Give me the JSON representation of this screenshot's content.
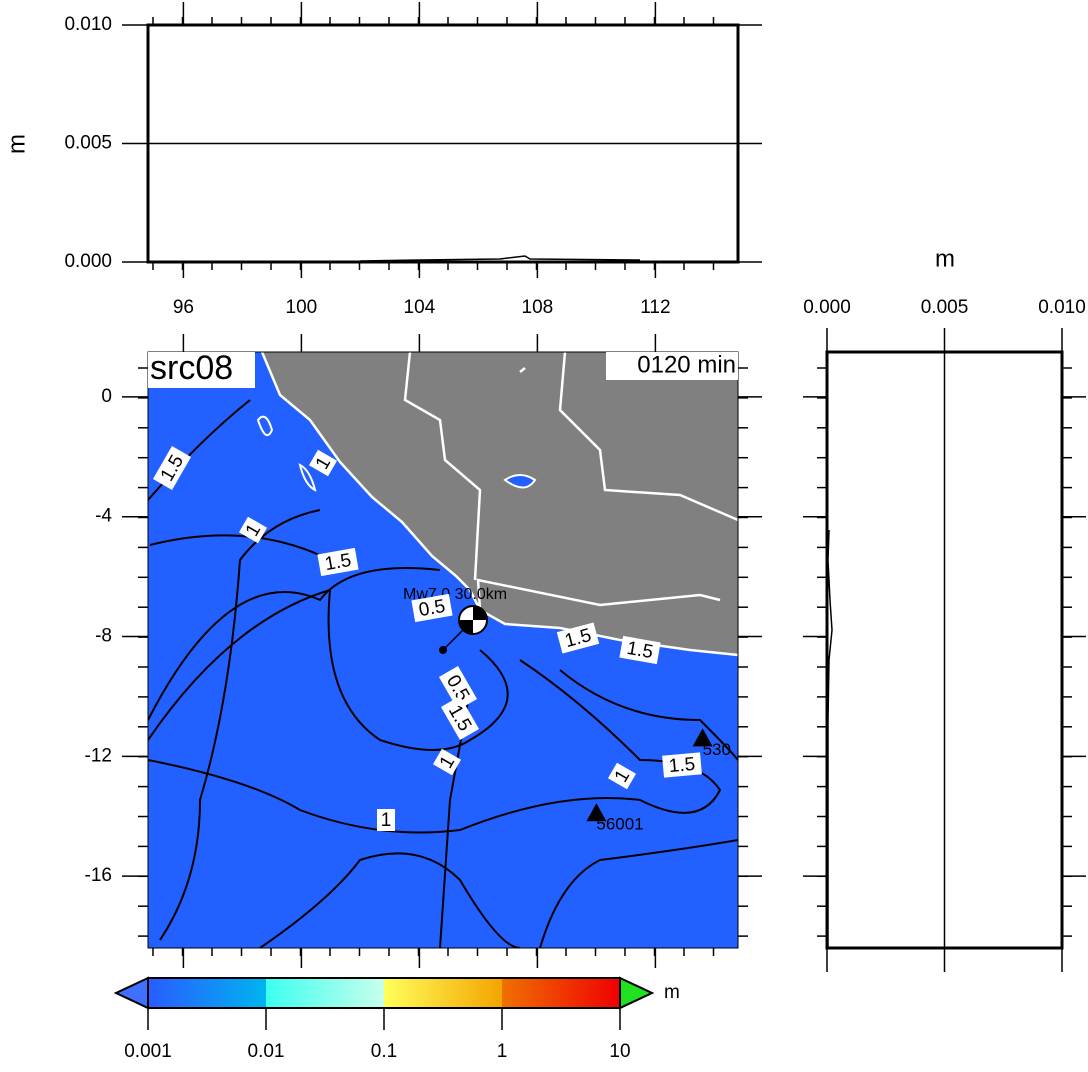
{
  "waveform_panel": {
    "y_label": "m",
    "ylim": [
      0,
      0.01
    ],
    "yticks": [
      {
        "value": 0,
        "label": "0.000"
      },
      {
        "value": 0.005,
        "label": "0.005"
      },
      {
        "value": 0.01,
        "label": "0.010"
      }
    ],
    "xlim": [
      94.8,
      114.8
    ],
    "xticks": [
      96,
      100,
      104,
      108,
      112
    ]
  },
  "map": {
    "title": "src08",
    "time_label": "0120 min",
    "ylim": [
      -18.4,
      1.5
    ],
    "yticks": [
      0,
      -4,
      -8,
      -12,
      -16
    ],
    "epicenter": {
      "label": "Mw7.0 30.0km",
      "lon": 104.8,
      "lat": -8.45
    },
    "stations": [
      {
        "label": "56001",
        "lon": 110.0,
        "lat": -13.9
      },
      {
        "label": "530",
        "lon": 113.6,
        "lat": -11.4
      }
    ],
    "contour_labels": [
      "1.5",
      "1",
      "1",
      "1.5",
      "0.5",
      "1.5",
      "1.5",
      "0.5",
      "1.5",
      "1",
      "1",
      "1.5",
      "1"
    ]
  },
  "profile_panel": {
    "x_label": "m",
    "xlim": [
      0,
      0.01
    ],
    "xticks": [
      {
        "value": 0,
        "label": "0.000"
      },
      {
        "value": 0.005,
        "label": "0.005"
      },
      {
        "value": 0.01,
        "label": "0.010"
      }
    ]
  },
  "colorbar": {
    "unit": "m",
    "ticks": [
      0.001,
      0.01,
      0.1,
      1,
      10
    ]
  }
}
